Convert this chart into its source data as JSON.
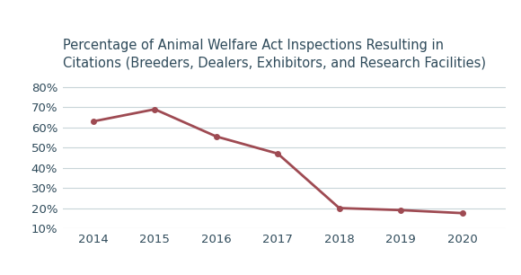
{
  "title_line1": "Percentage of Animal Welfare Act Inspections Resulting in",
  "title_line2": "Citations (Breeders, Dealers, Exhibitors, and Research Facilities)",
  "years": [
    2014,
    2015,
    2016,
    2017,
    2018,
    2019,
    2020
  ],
  "values": [
    0.63,
    0.69,
    0.555,
    0.47,
    0.2,
    0.19,
    0.175
  ],
  "line_color": "#9e4a52",
  "line_width": 2.0,
  "marker": "o",
  "marker_size": 4,
  "ylim": [
    0.1,
    0.85
  ],
  "yticks": [
    0.1,
    0.2,
    0.3,
    0.4,
    0.5,
    0.6,
    0.7,
    0.8
  ],
  "grid_color": "#c8d4d8",
  "background_color": "#ffffff",
  "title_color": "#2e4a5a",
  "tick_color": "#2e4a5a",
  "title_fontsize": 10.5,
  "tick_fontsize": 9.5,
  "figsize": [
    5.8,
    3.06
  ],
  "dpi": 100
}
